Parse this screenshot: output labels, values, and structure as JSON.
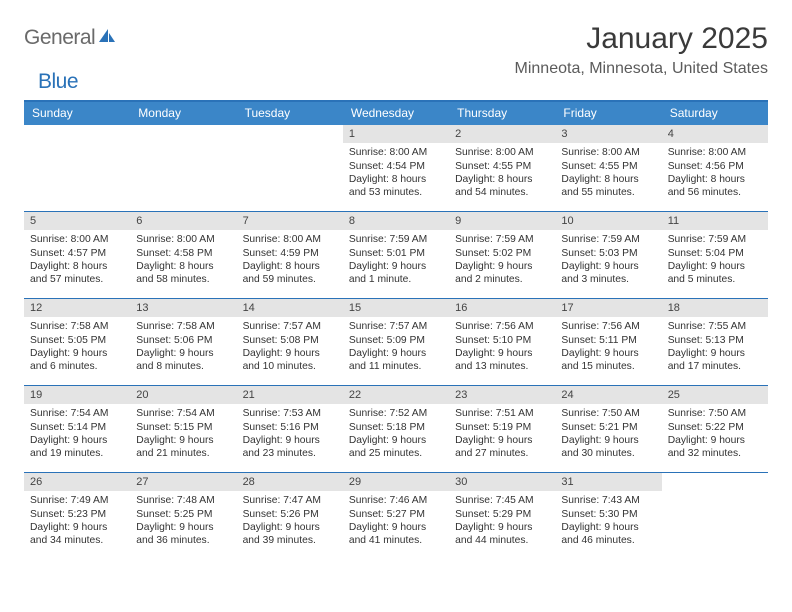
{
  "logo": {
    "text1": "General",
    "text2": "Blue"
  },
  "title": "January 2025",
  "location": "Minneota, Minnesota, United States",
  "colors": {
    "header_bg": "#3b86c8",
    "border": "#2a72b8",
    "daynum_bg": "#e4e4e4",
    "text": "#333333"
  },
  "dayHeaders": [
    "Sunday",
    "Monday",
    "Tuesday",
    "Wednesday",
    "Thursday",
    "Friday",
    "Saturday"
  ],
  "weeks": [
    [
      {
        "empty": true
      },
      {
        "empty": true
      },
      {
        "empty": true
      },
      {
        "n": "1",
        "sr": "Sunrise: 8:00 AM",
        "ss": "Sunset: 4:54 PM",
        "dl": "Daylight: 8 hours and 53 minutes."
      },
      {
        "n": "2",
        "sr": "Sunrise: 8:00 AM",
        "ss": "Sunset: 4:55 PM",
        "dl": "Daylight: 8 hours and 54 minutes."
      },
      {
        "n": "3",
        "sr": "Sunrise: 8:00 AM",
        "ss": "Sunset: 4:55 PM",
        "dl": "Daylight: 8 hours and 55 minutes."
      },
      {
        "n": "4",
        "sr": "Sunrise: 8:00 AM",
        "ss": "Sunset: 4:56 PM",
        "dl": "Daylight: 8 hours and 56 minutes."
      }
    ],
    [
      {
        "n": "5",
        "sr": "Sunrise: 8:00 AM",
        "ss": "Sunset: 4:57 PM",
        "dl": "Daylight: 8 hours and 57 minutes."
      },
      {
        "n": "6",
        "sr": "Sunrise: 8:00 AM",
        "ss": "Sunset: 4:58 PM",
        "dl": "Daylight: 8 hours and 58 minutes."
      },
      {
        "n": "7",
        "sr": "Sunrise: 8:00 AM",
        "ss": "Sunset: 4:59 PM",
        "dl": "Daylight: 8 hours and 59 minutes."
      },
      {
        "n": "8",
        "sr": "Sunrise: 7:59 AM",
        "ss": "Sunset: 5:01 PM",
        "dl": "Daylight: 9 hours and 1 minute."
      },
      {
        "n": "9",
        "sr": "Sunrise: 7:59 AM",
        "ss": "Sunset: 5:02 PM",
        "dl": "Daylight: 9 hours and 2 minutes."
      },
      {
        "n": "10",
        "sr": "Sunrise: 7:59 AM",
        "ss": "Sunset: 5:03 PM",
        "dl": "Daylight: 9 hours and 3 minutes."
      },
      {
        "n": "11",
        "sr": "Sunrise: 7:59 AM",
        "ss": "Sunset: 5:04 PM",
        "dl": "Daylight: 9 hours and 5 minutes."
      }
    ],
    [
      {
        "n": "12",
        "sr": "Sunrise: 7:58 AM",
        "ss": "Sunset: 5:05 PM",
        "dl": "Daylight: 9 hours and 6 minutes."
      },
      {
        "n": "13",
        "sr": "Sunrise: 7:58 AM",
        "ss": "Sunset: 5:06 PM",
        "dl": "Daylight: 9 hours and 8 minutes."
      },
      {
        "n": "14",
        "sr": "Sunrise: 7:57 AM",
        "ss": "Sunset: 5:08 PM",
        "dl": "Daylight: 9 hours and 10 minutes."
      },
      {
        "n": "15",
        "sr": "Sunrise: 7:57 AM",
        "ss": "Sunset: 5:09 PM",
        "dl": "Daylight: 9 hours and 11 minutes."
      },
      {
        "n": "16",
        "sr": "Sunrise: 7:56 AM",
        "ss": "Sunset: 5:10 PM",
        "dl": "Daylight: 9 hours and 13 minutes."
      },
      {
        "n": "17",
        "sr": "Sunrise: 7:56 AM",
        "ss": "Sunset: 5:11 PM",
        "dl": "Daylight: 9 hours and 15 minutes."
      },
      {
        "n": "18",
        "sr": "Sunrise: 7:55 AM",
        "ss": "Sunset: 5:13 PM",
        "dl": "Daylight: 9 hours and 17 minutes."
      }
    ],
    [
      {
        "n": "19",
        "sr": "Sunrise: 7:54 AM",
        "ss": "Sunset: 5:14 PM",
        "dl": "Daylight: 9 hours and 19 minutes."
      },
      {
        "n": "20",
        "sr": "Sunrise: 7:54 AM",
        "ss": "Sunset: 5:15 PM",
        "dl": "Daylight: 9 hours and 21 minutes."
      },
      {
        "n": "21",
        "sr": "Sunrise: 7:53 AM",
        "ss": "Sunset: 5:16 PM",
        "dl": "Daylight: 9 hours and 23 minutes."
      },
      {
        "n": "22",
        "sr": "Sunrise: 7:52 AM",
        "ss": "Sunset: 5:18 PM",
        "dl": "Daylight: 9 hours and 25 minutes."
      },
      {
        "n": "23",
        "sr": "Sunrise: 7:51 AM",
        "ss": "Sunset: 5:19 PM",
        "dl": "Daylight: 9 hours and 27 minutes."
      },
      {
        "n": "24",
        "sr": "Sunrise: 7:50 AM",
        "ss": "Sunset: 5:21 PM",
        "dl": "Daylight: 9 hours and 30 minutes."
      },
      {
        "n": "25",
        "sr": "Sunrise: 7:50 AM",
        "ss": "Sunset: 5:22 PM",
        "dl": "Daylight: 9 hours and 32 minutes."
      }
    ],
    [
      {
        "n": "26",
        "sr": "Sunrise: 7:49 AM",
        "ss": "Sunset: 5:23 PM",
        "dl": "Daylight: 9 hours and 34 minutes."
      },
      {
        "n": "27",
        "sr": "Sunrise: 7:48 AM",
        "ss": "Sunset: 5:25 PM",
        "dl": "Daylight: 9 hours and 36 minutes."
      },
      {
        "n": "28",
        "sr": "Sunrise: 7:47 AM",
        "ss": "Sunset: 5:26 PM",
        "dl": "Daylight: 9 hours and 39 minutes."
      },
      {
        "n": "29",
        "sr": "Sunrise: 7:46 AM",
        "ss": "Sunset: 5:27 PM",
        "dl": "Daylight: 9 hours and 41 minutes."
      },
      {
        "n": "30",
        "sr": "Sunrise: 7:45 AM",
        "ss": "Sunset: 5:29 PM",
        "dl": "Daylight: 9 hours and 44 minutes."
      },
      {
        "n": "31",
        "sr": "Sunrise: 7:43 AM",
        "ss": "Sunset: 5:30 PM",
        "dl": "Daylight: 9 hours and 46 minutes."
      },
      {
        "empty": true
      }
    ]
  ]
}
